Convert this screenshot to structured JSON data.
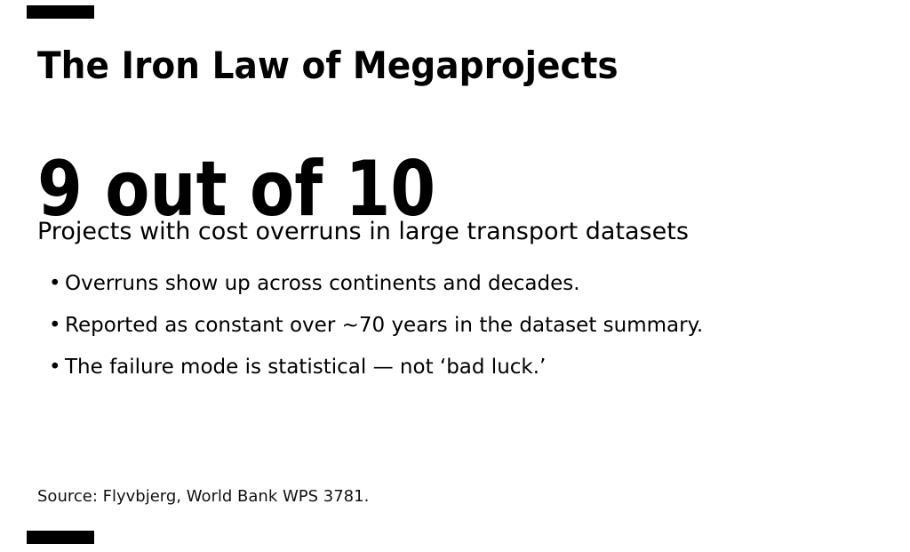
{
  "slide": {
    "background": "#ffffff",
    "text_color": "#000000",
    "accent_bar_color": "#000000",
    "title": "The Iron Law of Megaprojects",
    "stat": "9 out of 10",
    "subtitle": "Projects with cost overruns in large transport datasets",
    "bullet_glyph": "•",
    "bullets": [
      "Overruns show up across continents and decades.",
      "Reported as constant over ~70 years in the dataset summary.",
      "The failure mode is statistical — not ‘bad luck.’"
    ],
    "source": "Source: Flyvbjerg, World Bank WPS 3781."
  }
}
